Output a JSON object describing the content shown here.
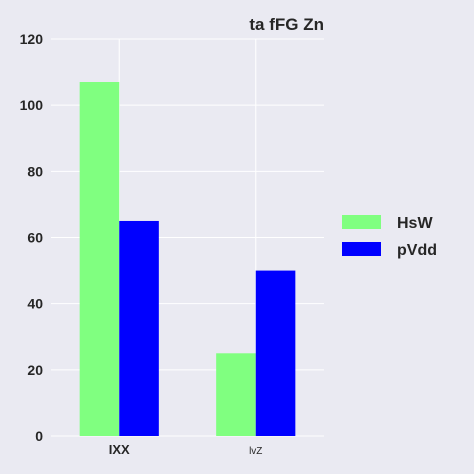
{
  "chart_data": {
    "type": "bar",
    "title": "ta fFG Zn",
    "xlabel": "",
    "ylabel": "",
    "categories": [
      "IXX",
      "lvZ"
    ],
    "series": [
      {
        "name": "HsW",
        "values": [
          107,
          25
        ],
        "color": "#80ff80"
      },
      {
        "name": "pVdd",
        "values": [
          65,
          50
        ],
        "color": "#0000ff"
      }
    ],
    "ylim": [
      0,
      120
    ],
    "yticks": [
      0,
      20,
      40,
      60,
      80,
      100,
      120
    ],
    "grid": true,
    "legend_position": "right",
    "background_color": "#eaeaf2",
    "grid_color": "#ffffff"
  }
}
